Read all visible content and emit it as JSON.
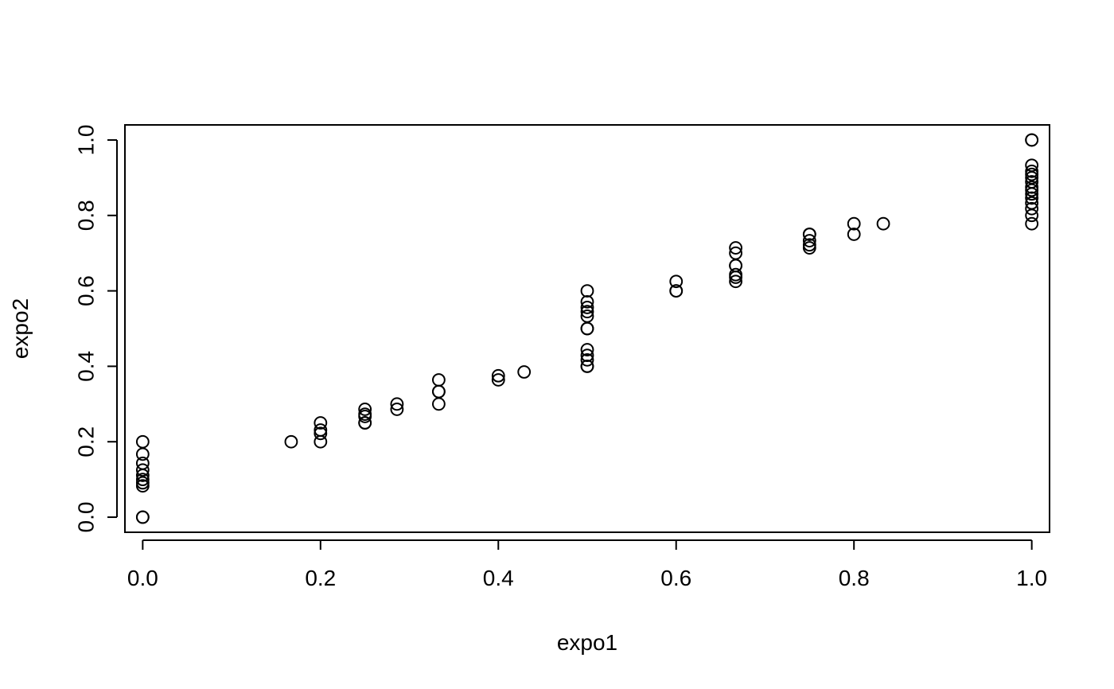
{
  "chart_data": {
    "type": "scatter",
    "title": "",
    "xlabel": "expo1",
    "ylabel": "expo2",
    "xlim": [
      -0.02,
      1.02
    ],
    "ylim": [
      -0.04,
      1.04
    ],
    "xticks": [
      "0.0",
      "0.2",
      "0.4",
      "0.6",
      "0.8",
      "1.0"
    ],
    "yticks": [
      "0.0",
      "0.2",
      "0.4",
      "0.6",
      "0.8",
      "1.0"
    ],
    "grid": false,
    "legend": "none",
    "marker": "open-circle",
    "colors": {
      "marker": "#000000",
      "axis": "#000000",
      "background": "#ffffff"
    },
    "points": [
      {
        "x": 0.0,
        "y": 0.0
      },
      {
        "x": 0.0,
        "y": 0.0
      },
      {
        "x": 0.0,
        "y": 0.083
      },
      {
        "x": 0.0,
        "y": 0.091
      },
      {
        "x": 0.0,
        "y": 0.1
      },
      {
        "x": 0.0,
        "y": 0.111
      },
      {
        "x": 0.0,
        "y": 0.125
      },
      {
        "x": 0.0,
        "y": 0.143
      },
      {
        "x": 0.0,
        "y": 0.167
      },
      {
        "x": 0.0,
        "y": 0.2
      },
      {
        "x": 0.167,
        "y": 0.2
      },
      {
        "x": 0.2,
        "y": 0.2
      },
      {
        "x": 0.2,
        "y": 0.222
      },
      {
        "x": 0.2,
        "y": 0.231
      },
      {
        "x": 0.2,
        "y": 0.25
      },
      {
        "x": 0.25,
        "y": 0.25
      },
      {
        "x": 0.25,
        "y": 0.25
      },
      {
        "x": 0.25,
        "y": 0.267
      },
      {
        "x": 0.25,
        "y": 0.273
      },
      {
        "x": 0.25,
        "y": 0.286
      },
      {
        "x": 0.286,
        "y": 0.286
      },
      {
        "x": 0.286,
        "y": 0.3
      },
      {
        "x": 0.333,
        "y": 0.3
      },
      {
        "x": 0.333,
        "y": 0.333
      },
      {
        "x": 0.333,
        "y": 0.333
      },
      {
        "x": 0.333,
        "y": 0.364
      },
      {
        "x": 0.4,
        "y": 0.364
      },
      {
        "x": 0.4,
        "y": 0.375
      },
      {
        "x": 0.429,
        "y": 0.385
      },
      {
        "x": 0.5,
        "y": 0.4
      },
      {
        "x": 0.5,
        "y": 0.4
      },
      {
        "x": 0.5,
        "y": 0.417
      },
      {
        "x": 0.5,
        "y": 0.429
      },
      {
        "x": 0.5,
        "y": 0.444
      },
      {
        "x": 0.5,
        "y": 0.5
      },
      {
        "x": 0.5,
        "y": 0.5
      },
      {
        "x": 0.5,
        "y": 0.533
      },
      {
        "x": 0.5,
        "y": 0.545
      },
      {
        "x": 0.5,
        "y": 0.556
      },
      {
        "x": 0.5,
        "y": 0.571
      },
      {
        "x": 0.5,
        "y": 0.6
      },
      {
        "x": 0.6,
        "y": 0.6
      },
      {
        "x": 0.6,
        "y": 0.6
      },
      {
        "x": 0.6,
        "y": 0.625
      },
      {
        "x": 0.667,
        "y": 0.625
      },
      {
        "x": 0.667,
        "y": 0.636
      },
      {
        "x": 0.667,
        "y": 0.643
      },
      {
        "x": 0.667,
        "y": 0.667
      },
      {
        "x": 0.667,
        "y": 0.667
      },
      {
        "x": 0.667,
        "y": 0.7
      },
      {
        "x": 0.667,
        "y": 0.714
      },
      {
        "x": 0.75,
        "y": 0.714
      },
      {
        "x": 0.75,
        "y": 0.722
      },
      {
        "x": 0.75,
        "y": 0.733
      },
      {
        "x": 0.75,
        "y": 0.75
      },
      {
        "x": 0.75,
        "y": 0.75
      },
      {
        "x": 0.8,
        "y": 0.75
      },
      {
        "x": 0.8,
        "y": 0.778
      },
      {
        "x": 0.833,
        "y": 0.778
      },
      {
        "x": 1.0,
        "y": 0.778
      },
      {
        "x": 1.0,
        "y": 0.8
      },
      {
        "x": 1.0,
        "y": 0.818
      },
      {
        "x": 1.0,
        "y": 0.833
      },
      {
        "x": 1.0,
        "y": 0.846
      },
      {
        "x": 1.0,
        "y": 0.857
      },
      {
        "x": 1.0,
        "y": 0.867
      },
      {
        "x": 1.0,
        "y": 0.875
      },
      {
        "x": 1.0,
        "y": 0.889
      },
      {
        "x": 1.0,
        "y": 0.9
      },
      {
        "x": 1.0,
        "y": 0.909
      },
      {
        "x": 1.0,
        "y": 0.917
      },
      {
        "x": 1.0,
        "y": 0.933
      },
      {
        "x": 1.0,
        "y": 1.0
      },
      {
        "x": 1.0,
        "y": 1.0
      }
    ]
  }
}
